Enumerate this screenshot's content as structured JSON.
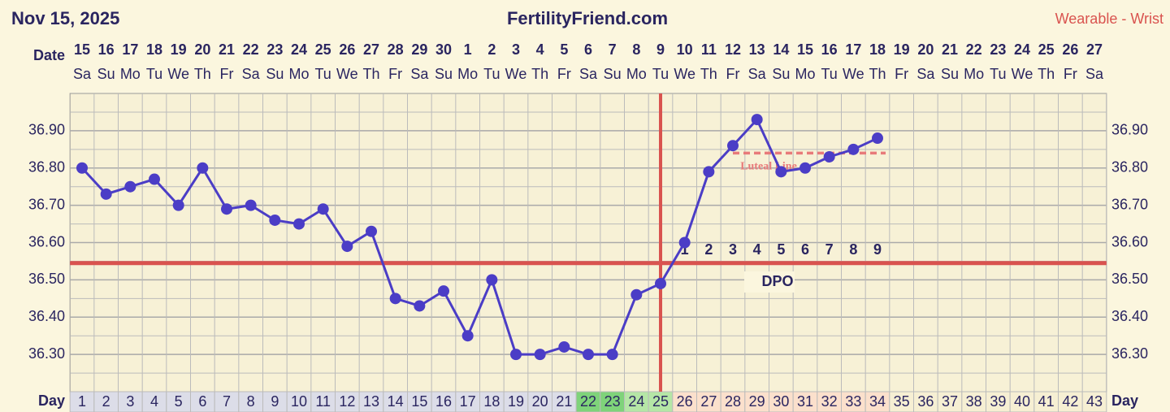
{
  "header": {
    "date": "Nov 15, 2025",
    "site": "FertilityFriend.com",
    "source": "Wearable - Wrist"
  },
  "chart_data": {
    "type": "line",
    "row_labels": {
      "date": "Date",
      "day": "Day"
    },
    "dates": [
      15,
      16,
      17,
      18,
      19,
      20,
      21,
      22,
      23,
      24,
      25,
      26,
      27,
      28,
      29,
      30,
      1,
      2,
      3,
      4,
      5,
      6,
      7,
      8,
      9,
      10,
      11,
      12,
      13,
      14,
      15,
      16,
      17,
      18,
      19,
      20,
      21,
      22,
      23,
      24,
      25,
      26,
      27
    ],
    "weekdays": [
      "Sa",
      "Su",
      "Mo",
      "Tu",
      "We",
      "Th",
      "Fr",
      "Sa",
      "Su",
      "Mo",
      "Tu",
      "We",
      "Th",
      "Fr",
      "Sa",
      "Su",
      "Mo",
      "Tu",
      "We",
      "Th",
      "Fr",
      "Sa",
      "Su",
      "Mo",
      "Tu",
      "We",
      "Th",
      "Fr",
      "Sa",
      "Su",
      "Mo",
      "Tu",
      "We",
      "Th",
      "Fr",
      "Sa",
      "Su",
      "Mo",
      "Tu",
      "We",
      "Th",
      "Fr",
      "Sa"
    ],
    "categories": [
      1,
      2,
      3,
      4,
      5,
      6,
      7,
      8,
      9,
      10,
      11,
      12,
      13,
      14,
      15,
      16,
      17,
      18,
      19,
      20,
      21,
      22,
      23,
      24,
      25,
      26,
      27,
      28,
      29,
      30,
      31,
      32,
      33,
      34,
      35,
      36,
      37,
      38,
      39,
      40,
      41,
      42,
      43
    ],
    "day_colors": [
      "#dcdde8",
      "#dcdde8",
      "#dcdde8",
      "#dcdde8",
      "#dcdde8",
      "#dcdde8",
      "#dcdde8",
      "#dcdde8",
      "#dcdde8",
      "#dcdde8",
      "#dcdde8",
      "#dcdde8",
      "#dcdde8",
      "#dcdde8",
      "#dcdde8",
      "#dcdde8",
      "#dcdde8",
      "#dcdde8",
      "#dcdde8",
      "#dcdde8",
      "#dcdde8",
      "#7fd37a",
      "#7fd37a",
      "#b5e6a6",
      "#b5e6a6",
      "#fbe0cc",
      "#fbe0cc",
      "#fbe0cc",
      "#fbe0cc",
      "#fbe0cc",
      "#fbe0cc",
      "#fbe0cc",
      "#fbe0cc",
      "#fbe0cc",
      "#f6efd3",
      "#f6efd3",
      "#f6efd3",
      "#f6efd3",
      "#f6efd3",
      "#f6efd3",
      "#f6efd3",
      "#f6efd3",
      "#f6efd3"
    ],
    "color": "#4b3dc6",
    "values": [
      36.8,
      36.73,
      36.75,
      36.77,
      36.7,
      36.8,
      36.69,
      36.7,
      36.66,
      36.65,
      36.69,
      36.59,
      36.63,
      36.45,
      36.43,
      36.47,
      36.35,
      36.5,
      36.3,
      36.3,
      36.32,
      36.3,
      36.3,
      36.46,
      36.49,
      36.6,
      36.79,
      36.86,
      36.93,
      36.79,
      36.8,
      36.83,
      36.85,
      36.88,
      null,
      null,
      null,
      null,
      null,
      null,
      null,
      null,
      null
    ],
    "ylim": [
      36.2,
      37.0
    ],
    "yticks": [
      {
        "value": 36.3,
        "label": "36.30"
      },
      {
        "value": 36.4,
        "label": "36.40"
      },
      {
        "value": 36.5,
        "label": "36.50"
      },
      {
        "value": 36.6,
        "label": "36.60"
      },
      {
        "value": 36.7,
        "label": "36.70"
      },
      {
        "value": 36.8,
        "label": "36.80"
      },
      {
        "value": 36.9,
        "label": "36.90"
      }
    ],
    "coverline": 36.545,
    "ovulation_day": 25,
    "line_color": "#d9534f",
    "luteal_line": {
      "label": "Luteal Line",
      "value": 36.84,
      "from_day": 28,
      "to_day": 34,
      "color": "#e87a7a"
    },
    "dpo": {
      "label": "DPO",
      "days": [
        26,
        27,
        28,
        29,
        30,
        31,
        32,
        33,
        34
      ],
      "values": [
        1,
        2,
        3,
        4,
        5,
        6,
        7,
        8,
        9
      ]
    }
  }
}
